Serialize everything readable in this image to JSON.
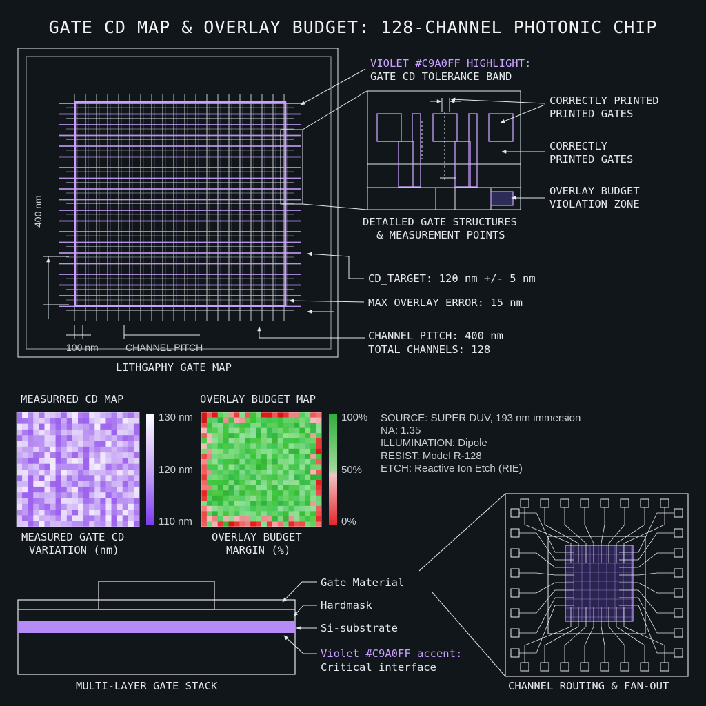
{
  "title": "GATE CD MAP & OVERLAY BUDGET: 128-CHANNEL PHOTONIC CHIP",
  "colors": {
    "background": "#11161b",
    "line": "#e4e8ec",
    "accent": "#c9a0ff",
    "red": "#e3342f",
    "green": "#3fbf3f"
  },
  "gate_map": {
    "caption": "LITHGAPHY GATE MAP",
    "dim_vertical": "400 nm",
    "dim_gate": "100 nm",
    "dim_pitch": "CHANNEL PITCH"
  },
  "callouts": {
    "highlight_title": "VIOLET #C9A0FF HIGHLIGHT:",
    "highlight_sub": "GATE CD TOLERANCE BAND",
    "correct_1_line1": "CORRECTLY PRINTED",
    "correct_1_line2": "PRINTED GATES",
    "correct_2_line1": "CORRECTLY",
    "correct_2_line2": "PRINTED GATES",
    "violation_line1": "OVERLAY BUDGET",
    "violation_line2": "VIOLATION ZONE",
    "detail_line1": "DETAILED GATE STRUCTURES",
    "detail_line2": "& MEASUREMENT POINTS",
    "cd_target": "CD_TARGET: 120 nm +/- 5 nm",
    "max_overlay": "MAX OVERLAY ERROR: 15 nm",
    "channel_pitch": "CHANNEL PITCH: 400 nm",
    "total_channels": "TOTAL CHANNELS: 128"
  },
  "cd_map": {
    "title": "MEASURRED CD MAP",
    "caption_line1": "MEASURED GATE CD",
    "caption_line2": "VARIATION (nm)",
    "scale_max": "130 nm",
    "scale_mid": "120 nm",
    "scale_min": "110 nm"
  },
  "overlay_map": {
    "title": "OVERLAY BUDGET MAP",
    "caption_line1": "OVERLAY BUDGET",
    "caption_line2": "MARGIN (%)",
    "scale_max": "100%",
    "scale_mid": "50%",
    "scale_min": "0%"
  },
  "specs": {
    "source": "SOURCE: SUPER DUV, 193 nm immersion",
    "na": "NA: 1.35",
    "illumination": "ILLUMINATION: Dipole",
    "resist": "RESIST: Model R-128",
    "etch": "ETCH: Reactive Ion Etch (RIE)"
  },
  "stack": {
    "caption": "MULTI-LAYER GATE STACK",
    "gate_material": "Gate Material",
    "hardmask": "Hardmask",
    "substrate": "Si-substrate",
    "accent_label": "Violet #C9A0FF accent:",
    "accent_sub": "Critical interface"
  },
  "routing": {
    "caption": "CHANNEL ROUTING & FAN-OUT"
  }
}
